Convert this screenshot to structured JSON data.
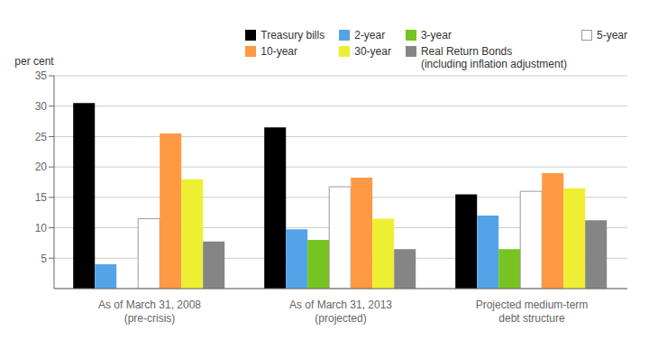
{
  "chart_data": {
    "type": "bar",
    "ylabel": "per cent",
    "categories": [
      "As of March 31, 2008\n(pre-crisis)",
      "As of March 31, 2013\n(projected)",
      "Projected medium-term\ndebt structure"
    ],
    "series": [
      {
        "name": "Treasury bills",
        "color": "#000000",
        "values": [
          30.5,
          26.5,
          15.5
        ]
      },
      {
        "name": "2-year",
        "color": "#54a3e9",
        "values": [
          4.0,
          9.75,
          12.0
        ]
      },
      {
        "name": "3-year",
        "color": "#77c322",
        "values": [
          0.0,
          8.0,
          6.5
        ]
      },
      {
        "name": "5-year",
        "color": "#ffffff",
        "values": [
          11.5,
          16.75,
          16.0
        ]
      },
      {
        "name": "10-year",
        "color": "#ff9944",
        "values": [
          25.5,
          18.25,
          19.0
        ]
      },
      {
        "name": "30-year",
        "color": "#eeee33",
        "values": [
          18.0,
          11.5,
          16.5
        ]
      },
      {
        "name": "Real Return Bonds\n(including inflation adjustment)",
        "color": "#858585",
        "values": [
          7.75,
          6.5,
          11.25
        ]
      }
    ],
    "ylim": [
      0,
      35
    ],
    "yticks": [
      5,
      10,
      15,
      20,
      25,
      30,
      35
    ],
    "grid": true,
    "legend": "upper right"
  }
}
